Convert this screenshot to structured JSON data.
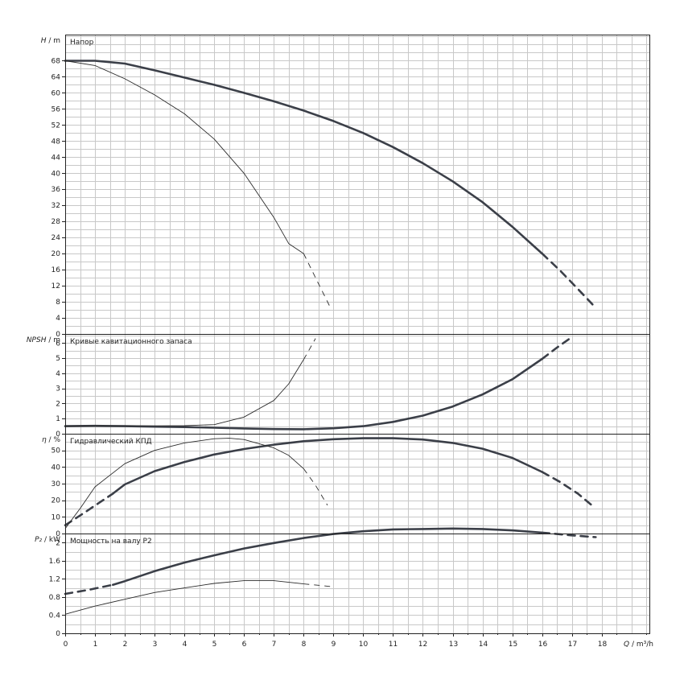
{
  "chart_data": {
    "type": "line",
    "x_axis": {
      "name": "Q",
      "unit": "m³/h",
      "ticks": [
        "0",
        "1",
        "2",
        "3",
        "4",
        "5",
        "6",
        "7",
        "8",
        "9",
        "10",
        "11",
        "12",
        "13",
        "14",
        "15",
        "16",
        "17",
        "18"
      ],
      "range": [
        0,
        19.6
      ]
    },
    "panels": [
      {
        "id": "head",
        "title": "Напор",
        "ylabel_symbol": "H",
        "ylabel_unit": "m",
        "yticks": [
          "0",
          "4",
          "8",
          "12",
          "16",
          "20",
          "24",
          "28",
          "32",
          "36",
          "40",
          "44",
          "48",
          "52",
          "56",
          "60",
          "64",
          "68"
        ],
        "ylim": [
          0,
          74.5
        ],
        "series": [
          {
            "style": "thick",
            "x": [
              0,
              1,
              2,
              3,
              4,
              5,
              6,
              7,
              8,
              9,
              10,
              11,
              12,
              13,
              14,
              15,
              16
            ],
            "y": [
              68,
              68,
              67.3,
              65.6,
              63.8,
              62,
              60,
              57.9,
              55.6,
              53,
              50,
              46.5,
              42.5,
              38,
              32.8,
              26.7,
              20
            ]
          },
          {
            "style": "thick-dashed",
            "x": [
              16,
              16.6,
              17.2,
              17.8
            ],
            "y": [
              20,
              15.8,
              11.2,
              6.5
            ]
          },
          {
            "style": "thin",
            "x": [
              0,
              1,
              2,
              3,
              4,
              5,
              6,
              7,
              7.5,
              8
            ],
            "y": [
              68,
              66.8,
              63.5,
              59.5,
              54.8,
              48.5,
              40,
              29,
              22.5,
              20
            ]
          },
          {
            "style": "thin-dashed",
            "x": [
              8,
              8.5,
              8.9
            ],
            "y": [
              20,
              12.5,
              6.5
            ]
          }
        ]
      },
      {
        "id": "npsh",
        "title": "Кривые кавитационного запаса",
        "ylabel_symbol": "NPSH",
        "ylabel_unit": "m",
        "yticks": [
          "0",
          "1",
          "2",
          "3",
          "4",
          "5",
          "6"
        ],
        "ylim": [
          0,
          6.6
        ],
        "series": [
          {
            "style": "thick",
            "x": [
              0,
              1,
              2,
              3,
              4,
              5,
              6,
              7,
              8,
              9,
              10,
              11,
              12,
              13,
              14,
              15,
              16
            ],
            "y": [
              0.5,
              0.52,
              0.5,
              0.47,
              0.44,
              0.4,
              0.35,
              0.31,
              0.3,
              0.36,
              0.5,
              0.78,
              1.2,
              1.8,
              2.6,
              3.6,
              4.95
            ]
          },
          {
            "style": "thick-dashed",
            "x": [
              16,
              16.5,
              17
            ],
            "y": [
              4.95,
              5.7,
              6.4
            ]
          },
          {
            "style": "thin",
            "x": [
              0,
              1,
              2,
              3,
              4,
              5,
              6,
              7,
              7.5,
              8
            ],
            "y": [
              0.5,
              0.52,
              0.52,
              0.52,
              0.53,
              0.6,
              1.1,
              2.2,
              3.3,
              4.9
            ]
          },
          {
            "style": "thin-dashed",
            "x": [
              8,
              8.2,
              8.4
            ],
            "y": [
              4.9,
              5.6,
              6.3
            ]
          }
        ]
      },
      {
        "id": "eta",
        "title": "Гидравлический КПД",
        "ylabel_symbol": "η",
        "ylabel_unit": "%",
        "yticks": [
          "0",
          "10",
          "20",
          "30",
          "40",
          "50"
        ],
        "ylim": [
          0,
          60
        ],
        "series": [
          {
            "style": "thick-dashed",
            "x": [
              0,
              0.6,
              1.1,
              1.6
            ],
            "y": [
              5,
              12,
              18,
              24
            ]
          },
          {
            "style": "thick",
            "x": [
              1.6,
              2,
              3,
              4,
              5,
              6,
              7,
              8,
              9,
              10,
              11,
              12,
              13,
              14,
              15,
              16
            ],
            "y": [
              24,
              29.5,
              37.5,
              43,
              47.5,
              50.8,
              53.4,
              55.5,
              56.7,
              57.3,
              57.3,
              56.5,
              54.5,
              51,
              45.5,
              37
            ]
          },
          {
            "style": "thick-dashed",
            "x": [
              16,
              16.6,
              17.2,
              17.7
            ],
            "y": [
              37,
              31,
              24,
              16.5
            ]
          },
          {
            "style": "thin",
            "x": [
              0,
              0.5,
              1,
              2,
              3,
              4,
              5,
              5.5,
              6,
              7,
              7.5,
              8
            ],
            "y": [
              3,
              15,
              28,
              42,
              50,
              54.5,
              57,
              57.3,
              56.5,
              51.5,
              47,
              39
            ]
          },
          {
            "style": "thin-dashed",
            "x": [
              8,
              8.4,
              8.8
            ],
            "y": [
              39,
              29,
              17
            ]
          }
        ]
      },
      {
        "id": "power",
        "title": "Мощность на валу P2",
        "ylabel_symbol": "P₂",
        "ylabel_unit": "kW",
        "yticks": [
          "0",
          "0.4",
          "0.8",
          "1.2",
          "1.6",
          "2"
        ],
        "ylim": [
          0,
          2.2
        ],
        "series": [
          {
            "style": "thick-dashed",
            "x": [
              0,
              0.8,
              1.6
            ],
            "y": [
              0.87,
              0.96,
              1.07
            ]
          },
          {
            "style": "thick",
            "x": [
              1.6,
              2,
              3,
              4,
              5,
              6,
              7,
              8,
              9,
              10,
              11,
              12,
              13,
              14,
              15,
              16
            ],
            "y": [
              1.07,
              1.15,
              1.37,
              1.56,
              1.72,
              1.87,
              1.99,
              2.1,
              2.19,
              2.25,
              2.29,
              2.3,
              2.31,
              2.3,
              2.27,
              2.22
            ]
          },
          {
            "style": "thick-dashed",
            "x": [
              16,
              17,
              17.8
            ],
            "y": [
              2.22,
              2.16,
              2.12
            ]
          },
          {
            "style": "thin",
            "x": [
              0,
              1,
              2,
              3,
              4,
              5,
              6,
              7,
              8
            ],
            "y": [
              0.42,
              0.6,
              0.75,
              0.9,
              1.0,
              1.1,
              1.16,
              1.16,
              1.09
            ]
          },
          {
            "style": "thin-dashed",
            "x": [
              8,
              8.5,
              8.9
            ],
            "y": [
              1.09,
              1.06,
              1.03
            ]
          }
        ]
      }
    ]
  }
}
